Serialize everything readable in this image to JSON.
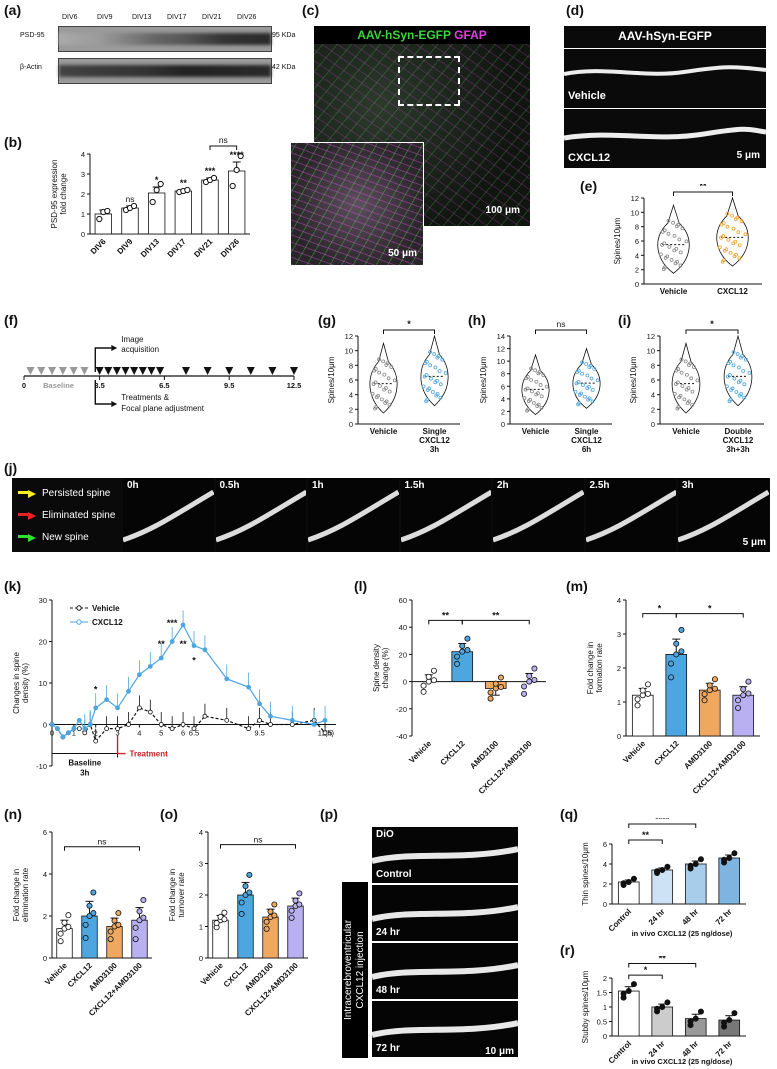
{
  "labels": {
    "a": "(a)",
    "b": "(b)",
    "c": "(c)",
    "d": "(d)",
    "e": "(e)",
    "f": "(f)",
    "g": "(g)",
    "h": "(h)",
    "i": "(i)",
    "j": "(j)",
    "k": "(k)",
    "l": "(l)",
    "m": "(m)",
    "n": "(n)",
    "o": "(o)",
    "p": "(p)",
    "q": "(q)",
    "r": "(r)"
  },
  "wb": {
    "lanes": [
      "DIV6",
      "DIV9",
      "DIV13",
      "DIV17",
      "DIV21",
      "DIV26"
    ],
    "rows": [
      "PSD-95",
      "β-Actin"
    ],
    "sizes": [
      "95 KDa",
      "42 KDa"
    ]
  },
  "c": {
    "title_a": "AAV-hSyn-EGFP",
    "title_b": "GFAP",
    "scale_main": "100 μm",
    "scale_inset": "50 μm"
  },
  "d": {
    "title": "AAV-hSyn-EGFP",
    "vehicle": "Vehicle",
    "cxcl12": "CXCL12",
    "scale": "5 μm"
  },
  "f": {
    "image": "Image",
    "acquisition": "acquisition",
    "baseline": "Baseline",
    "treat1": "Treatments &",
    "treat2": "Focal plane adjustment",
    "ticks": [
      "0",
      "3.5",
      "6.5",
      "9.5",
      "12.5"
    ]
  },
  "j": {
    "legend": [
      "Persisted spine",
      "Eliminated spine",
      "New spine"
    ],
    "times": [
      "0h",
      "0.5h",
      "1h",
      "1.5h",
      "2h",
      "2.5h",
      "3h"
    ],
    "scale": "5 μm"
  },
  "p": {
    "dio": "DiO",
    "times": [
      "Control",
      "24 hr",
      "48 hr",
      "72 hr"
    ],
    "side": "Intracerebroventricular",
    "side2": "CXCL12 injection",
    "scale": "10 μm"
  },
  "chart_data": [
    {
      "panel": "b",
      "type": "bar",
      "categories": [
        "DIV6",
        "DIV9",
        "DIV13",
        "DIV17",
        "DIV21",
        "DIV26"
      ],
      "values": [
        1.0,
        1.3,
        2.05,
        2.15,
        2.7,
        3.15
      ],
      "sem": [
        0.2,
        0.1,
        0.3,
        0.05,
        0.1,
        0.45
      ],
      "points": [
        [
          0.75,
          1.1,
          1.15
        ],
        [
          1.2,
          1.3,
          1.4
        ],
        [
          1.6,
          2.2,
          2.5
        ],
        [
          2.1,
          2.15,
          2.2
        ],
        [
          2.6,
          2.7,
          2.8
        ],
        [
          2.4,
          3.2,
          3.9
        ]
      ],
      "sig": [
        "",
        "ns",
        "*",
        "**",
        "***",
        "****"
      ],
      "bracket": "ns",
      "ylabel": "PSD-95 expression fold change",
      "ylim": [
        0,
        4
      ],
      "yticks": [
        0,
        1,
        2,
        3,
        4
      ]
    },
    {
      "panel": "e",
      "type": "violin",
      "categories": [
        "Vehicle",
        "CXCL12"
      ],
      "ylabel": "Spines/10μm",
      "ylim": [
        0,
        12
      ],
      "yticks": [
        0,
        2,
        4,
        6,
        8,
        10,
        12
      ],
      "sig": "**",
      "colors": [
        "#888888",
        "#f0a030"
      ]
    },
    {
      "panel": "g",
      "type": "violin",
      "categories": [
        "Vehicle",
        "Single CXCL12 3h"
      ],
      "ylabel": "Spines/10μm",
      "ylim": [
        0,
        12
      ],
      "yticks": [
        0,
        2,
        4,
        6,
        8,
        10,
        12
      ],
      "sig": "*",
      "colors": [
        "#888888",
        "#4da6e0"
      ]
    },
    {
      "panel": "h",
      "type": "violin",
      "categories": [
        "Vehicle",
        "Single CXCL12 6h"
      ],
      "ylabel": "Spines/10μm",
      "ylim": [
        0,
        14
      ],
      "yticks": [
        0,
        2,
        4,
        6,
        8,
        10,
        12,
        14
      ],
      "sig": "ns",
      "colors": [
        "#888888",
        "#4da6e0"
      ]
    },
    {
      "panel": "i",
      "type": "violin",
      "categories": [
        "Vehicle",
        "Double CXCL12 3h+3h"
      ],
      "ylabel": "Spines/10μm",
      "ylim": [
        0,
        12
      ],
      "yticks": [
        0,
        2,
        4,
        6,
        8,
        10,
        12
      ],
      "sig": "*",
      "colors": [
        "#888888",
        "#4da6e0"
      ]
    },
    {
      "panel": "k",
      "type": "line",
      "x": [
        0,
        0.25,
        0.5,
        0.75,
        1,
        1.25,
        1.5,
        1.75,
        2,
        2.5,
        3,
        3.5,
        4,
        4.5,
        5,
        5.5,
        6,
        6.5,
        7,
        8,
        9,
        9.5,
        10,
        11,
        12,
        12.5
      ],
      "series": [
        {
          "name": "Vehicle",
          "values": [
            0,
            -1,
            -3,
            -2,
            -1,
            -1,
            -2,
            0,
            -4,
            -1,
            -1,
            0,
            4,
            3,
            0,
            -1,
            0,
            -1,
            2,
            1,
            -1,
            1,
            0,
            0,
            1,
            -2
          ]
        },
        {
          "name": "CXCL12",
          "values": [
            0,
            -1,
            -3,
            -2,
            -1,
            1,
            -1,
            0,
            4,
            6,
            4,
            8,
            12,
            14,
            16,
            20,
            24,
            19,
            18,
            11,
            9,
            5,
            2,
            1,
            0,
            1
          ]
        }
      ],
      "sig": [
        "*",
        "**",
        "***",
        "**",
        "*"
      ],
      "xlabel": "(h)",
      "ylabel": "Changes in spine density (%)",
      "ylim": [
        -10,
        30
      ],
      "yticks": [
        -10,
        0,
        10,
        20,
        30
      ],
      "xticklabels": [
        "0",
        "1",
        "2",
        "3",
        "4",
        "5",
        "6",
        "6.5",
        "9.5",
        "12.5"
      ],
      "baseline": "Baseline",
      "baseline2": "3h",
      "treatment": "Treatment"
    },
    {
      "panel": "l",
      "type": "bar",
      "categories": [
        "Vehicle",
        "CXCL12",
        "AMD3100",
        "CXCL12+AMD3100"
      ],
      "values": [
        0,
        22,
        -5,
        0
      ],
      "sem": [
        5,
        6,
        5,
        6
      ],
      "ylabel": "Spine density change (%)",
      "ylim": [
        -40,
        60
      ],
      "yticks": [
        -40,
        -20,
        0,
        20,
        40,
        60
      ],
      "sig": [
        "**",
        "**"
      ]
    },
    {
      "panel": "m",
      "type": "bar",
      "categories": [
        "Vehicle",
        "CXCL12",
        "AMD3100",
        "CXCL12+AMD3100"
      ],
      "values": [
        1.2,
        2.4,
        1.35,
        1.2
      ],
      "sem": [
        0.2,
        0.45,
        0.2,
        0.25
      ],
      "ylabel": "Fold change in formation rate",
      "ylim": [
        0,
        4
      ],
      "yticks": [
        0,
        1,
        2,
        3,
        4
      ],
      "sig": [
        "*",
        "*"
      ]
    },
    {
      "panel": "n",
      "type": "bar",
      "categories": [
        "Vehicle",
        "CXCL12",
        "AMD3100",
        "CXCL12+AMD3100"
      ],
      "values": [
        1.4,
        2.0,
        1.5,
        1.8
      ],
      "sem": [
        0.4,
        0.7,
        0.4,
        0.6
      ],
      "ylabel": "Fold change in elimination rate",
      "ylim": [
        0,
        6
      ],
      "yticks": [
        0,
        2,
        4,
        6
      ],
      "sig": "ns"
    },
    {
      "panel": "o",
      "type": "bar",
      "categories": [
        "Vehicle",
        "CXCL12",
        "AMD3100",
        "CXCL12+AMD3100"
      ],
      "values": [
        1.2,
        2.0,
        1.3,
        1.65
      ],
      "sem": [
        0.15,
        0.4,
        0.25,
        0.25
      ],
      "ylabel": "Fold change in turnover rate",
      "ylim": [
        0,
        4
      ],
      "yticks": [
        0,
        1,
        2,
        3,
        4
      ],
      "sig": "ns"
    },
    {
      "panel": "q",
      "type": "bar",
      "categories": [
        "Control",
        "24 hr",
        "48 hr",
        "72 hr"
      ],
      "values": [
        2.2,
        3.4,
        4.0,
        4.6
      ],
      "sem": [
        0.2,
        0.2,
        0.3,
        0.3
      ],
      "ylabel": "Thin spines/10μm",
      "xlabel": "in vivo CXCL12 (25 ng/dose)",
      "ylim": [
        0,
        6
      ],
      "yticks": [
        0,
        2,
        4,
        6
      ],
      "sig": [
        "**",
        "****",
        "****"
      ]
    },
    {
      "panel": "r",
      "type": "bar",
      "categories": [
        "Control",
        "24 hr",
        "48 hr",
        "72 hr"
      ],
      "values": [
        1.55,
        1.0,
        0.6,
        0.55
      ],
      "sem": [
        0.15,
        0.1,
        0.15,
        0.15
      ],
      "ylabel": "Stubby spines/10μm",
      "xlabel": "in vivo CXCL12 (25 ng/dose)",
      "ylim": [
        0,
        2
      ],
      "yticks": [
        0,
        0.5,
        1,
        1.5,
        2
      ],
      "sig": [
        "*",
        "**",
        "**"
      ]
    }
  ]
}
